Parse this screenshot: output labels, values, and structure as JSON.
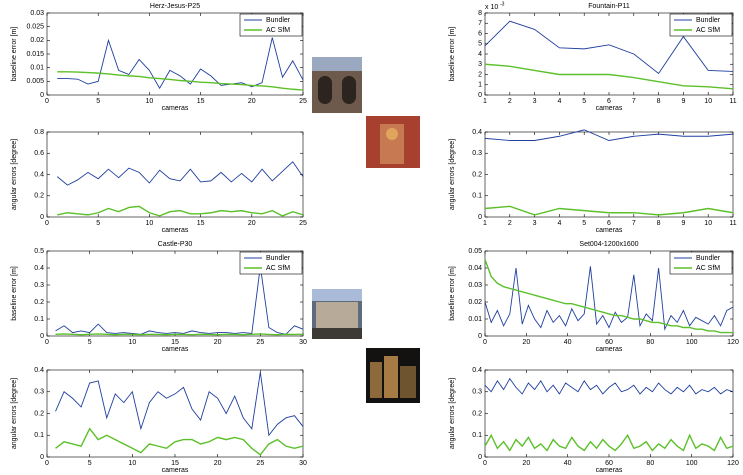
{
  "chart_data": [
    {
      "type": "line",
      "title": "Herz-Jesus-P25",
      "ylabel": "baseline error [m]",
      "xlabel": "cameras",
      "x": [
        1,
        2,
        3,
        4,
        5,
        6,
        7,
        8,
        9,
        10,
        11,
        12,
        13,
        14,
        15,
        16,
        17,
        18,
        19,
        20,
        21,
        22,
        23,
        24,
        25
      ],
      "series": [
        {
          "name": "Bundler",
          "color": "#1f3f9f",
          "values": [
            0.006,
            0.006,
            0.0058,
            0.004,
            0.005,
            0.02,
            0.009,
            0.0075,
            0.013,
            0.009,
            0.0025,
            0.009,
            0.007,
            0.004,
            0.0095,
            0.007,
            0.0035,
            0.004,
            0.0045,
            0.003,
            0.0045,
            0.021,
            0.0065,
            0.0125,
            0.0055
          ]
        },
        {
          "name": "AC SfM",
          "color": "#5cc02a",
          "values": [
            0.0085,
            0.0085,
            0.0084,
            0.0082,
            0.008,
            0.0077,
            0.0073,
            0.007,
            0.0068,
            0.0063,
            0.006,
            0.0057,
            0.0053,
            0.005,
            0.0047,
            0.0045,
            0.0042,
            0.004,
            0.0038,
            0.0035,
            0.0033,
            0.003,
            0.0025,
            0.0021,
            0.0018
          ]
        }
      ],
      "xlim": [
        0,
        25
      ],
      "xticks": [
        0,
        5,
        10,
        15,
        20,
        25
      ],
      "ylim": [
        0,
        0.03
      ],
      "yticks": [
        0,
        0.005,
        0.01,
        0.015,
        0.02,
        0.025,
        0.03
      ],
      "legend": "upper right"
    },
    {
      "type": "line",
      "ylabel": "angular errors [degree]",
      "xlabel": "cameras",
      "x": [
        1,
        2,
        3,
        4,
        5,
        6,
        7,
        8,
        9,
        10,
        11,
        12,
        13,
        14,
        15,
        16,
        17,
        18,
        19,
        20,
        21,
        22,
        23,
        24,
        25
      ],
      "series": [
        {
          "color": "#1f3f9f",
          "values": [
            0.38,
            0.3,
            0.35,
            0.42,
            0.36,
            0.45,
            0.37,
            0.46,
            0.42,
            0.32,
            0.44,
            0.36,
            0.34,
            0.45,
            0.33,
            0.34,
            0.42,
            0.33,
            0.41,
            0.33,
            0.45,
            0.34,
            0.43,
            0.52,
            0.38
          ]
        },
        {
          "color": "#5cc02a",
          "values": [
            0.02,
            0.04,
            0.03,
            0.02,
            0.04,
            0.08,
            0.05,
            0.09,
            0.1,
            0.04,
            0.01,
            0.05,
            0.06,
            0.03,
            0.03,
            0.04,
            0.06,
            0.05,
            0.06,
            0.04,
            0.03,
            0.06,
            0.01,
            0.05,
            0.02
          ]
        }
      ],
      "xlim": [
        0,
        25
      ],
      "xticks": [
        0,
        5,
        10,
        15,
        20,
        25
      ],
      "ylim": [
        0,
        0.8
      ],
      "yticks": [
        0,
        0.2,
        0.4,
        0.6,
        0.8
      ]
    },
    {
      "type": "line",
      "title": "Castle-P30",
      "ylabel": "baseline error [m]",
      "xlabel": "cameras",
      "x": [
        1,
        2,
        3,
        4,
        5,
        6,
        7,
        8,
        9,
        10,
        11,
        12,
        13,
        14,
        15,
        16,
        17,
        18,
        19,
        20,
        21,
        22,
        23,
        24,
        25,
        26,
        27,
        28,
        29,
        30
      ],
      "series": [
        {
          "name": "Bundler",
          "color": "#1f3f9f",
          "values": [
            0.03,
            0.06,
            0.02,
            0.03,
            0.02,
            0.07,
            0.02,
            0.015,
            0.02,
            0.015,
            0.01,
            0.03,
            0.02,
            0.015,
            0.02,
            0.015,
            0.03,
            0.02,
            0.015,
            0.02,
            0.02,
            0.015,
            0.02,
            0.015,
            0.41,
            0.05,
            0.02,
            0.01,
            0.06,
            0.04
          ]
        },
        {
          "name": "AC SfM",
          "color": "#5cc02a",
          "values": [
            0.01,
            0.012,
            0.01,
            0.008,
            0.01,
            0.012,
            0.01,
            0.008,
            0.01,
            0.009,
            0.008,
            0.01,
            0.009,
            0.008,
            0.01,
            0.009,
            0.008,
            0.01,
            0.009,
            0.008,
            0.01,
            0.009,
            0.008,
            0.01,
            0.012,
            0.009,
            0.008,
            0.01,
            0.009,
            0.01
          ]
        }
      ],
      "xlim": [
        0,
        30
      ],
      "xticks": [
        0,
        5,
        10,
        15,
        20,
        25,
        30
      ],
      "ylim": [
        0,
        0.5
      ],
      "yticks": [
        0,
        0.1,
        0.2,
        0.3,
        0.4,
        0.5
      ],
      "legend": "upper right"
    },
    {
      "type": "line",
      "ylabel": "angular errors [degree]",
      "xlabel": "cameras",
      "x": [
        1,
        2,
        3,
        4,
        5,
        6,
        7,
        8,
        9,
        10,
        11,
        12,
        13,
        14,
        15,
        16,
        17,
        18,
        19,
        20,
        21,
        22,
        23,
        24,
        25,
        26,
        27,
        28,
        29,
        30
      ],
      "series": [
        {
          "color": "#1f3f9f",
          "values": [
            0.21,
            0.3,
            0.27,
            0.23,
            0.34,
            0.35,
            0.18,
            0.29,
            0.25,
            0.3,
            0.13,
            0.25,
            0.3,
            0.27,
            0.29,
            0.32,
            0.22,
            0.17,
            0.3,
            0.27,
            0.2,
            0.28,
            0.18,
            0.13,
            0.39,
            0.1,
            0.15,
            0.18,
            0.19,
            0.14
          ]
        },
        {
          "color": "#5cc02a",
          "values": [
            0.04,
            0.07,
            0.06,
            0.05,
            0.13,
            0.08,
            0.1,
            0.08,
            0.06,
            0.04,
            0.02,
            0.06,
            0.05,
            0.04,
            0.07,
            0.08,
            0.08,
            0.06,
            0.07,
            0.09,
            0.08,
            0.09,
            0.08,
            0.04,
            0.01,
            0.06,
            0.08,
            0.05,
            0.04,
            0.05
          ]
        }
      ],
      "xlim": [
        0,
        30
      ],
      "xticks": [
        0,
        5,
        10,
        15,
        20,
        25,
        30
      ],
      "ylim": [
        0,
        0.4
      ],
      "yticks": [
        0,
        0.1,
        0.2,
        0.3,
        0.4
      ]
    },
    {
      "type": "line",
      "title": "Fountain-P11",
      "ylabel": "baseline error [m]",
      "xlabel": "cameras",
      "y_multiplier": "x 10",
      "y_multiplier_exponent": "-3",
      "x": [
        1,
        2,
        3,
        4,
        5,
        6,
        7,
        8,
        9,
        10,
        11
      ],
      "series": [
        {
          "name": "Bundler",
          "color": "#1f3f9f",
          "values": [
            0.0048,
            0.0072,
            0.0064,
            0.0046,
            0.0045,
            0.0049,
            0.004,
            0.0021,
            0.0057,
            0.0024,
            0.0023
          ]
        },
        {
          "name": "AC SfM",
          "color": "#5cc02a",
          "values": [
            0.003,
            0.0028,
            0.0024,
            0.002,
            0.002,
            0.002,
            0.0017,
            0.0013,
            0.0009,
            0.0008,
            0.0006
          ]
        }
      ],
      "xlim": [
        1,
        11
      ],
      "xticks": [
        1,
        2,
        3,
        4,
        5,
        6,
        7,
        8,
        9,
        10,
        11
      ],
      "ylim": [
        0,
        0.008
      ],
      "yticks": [
        {
          "value": 0,
          "label": "0"
        },
        {
          "value": 0.001,
          "label": "1"
        },
        {
          "value": 0.002,
          "label": "2"
        },
        {
          "value": 0.003,
          "label": "3"
        },
        {
          "value": 0.004,
          "label": "4"
        },
        {
          "value": 0.005,
          "label": "5"
        },
        {
          "value": 0.006,
          "label": "6"
        },
        {
          "value": 0.007,
          "label": "7"
        },
        {
          "value": 0.008,
          "label": "8"
        }
      ],
      "legend": "upper right"
    },
    {
      "type": "line",
      "ylabel": "angular errors [degree]",
      "xlabel": "cameras",
      "x": [
        1,
        2,
        3,
        4,
        5,
        6,
        7,
        8,
        9,
        10,
        11
      ],
      "series": [
        {
          "color": "#1f3f9f",
          "values": [
            0.37,
            0.36,
            0.36,
            0.38,
            0.41,
            0.36,
            0.38,
            0.39,
            0.38,
            0.38,
            0.39
          ]
        },
        {
          "color": "#5cc02a",
          "values": [
            0.04,
            0.05,
            0.01,
            0.04,
            0.03,
            0.02,
            0.02,
            0.01,
            0.02,
            0.04,
            0.02
          ]
        }
      ],
      "xlim": [
        1,
        11
      ],
      "xticks": [
        1,
        2,
        3,
        4,
        5,
        6,
        7,
        8,
        9,
        10,
        11
      ],
      "ylim": [
        0,
        0.4
      ],
      "yticks": [
        0,
        0.1,
        0.2,
        0.3,
        0.4
      ]
    },
    {
      "type": "line",
      "title": "Set004-1200x1600",
      "ylabel": "baseline error [m]",
      "xlabel": "cameras",
      "x": [
        0,
        3,
        6,
        9,
        12,
        15,
        18,
        21,
        24,
        27,
        30,
        33,
        36,
        39,
        42,
        45,
        48,
        51,
        54,
        57,
        60,
        63,
        66,
        69,
        72,
        75,
        78,
        81,
        84,
        87,
        90,
        93,
        96,
        99,
        102,
        105,
        108,
        111,
        114,
        117,
        120
      ],
      "series": [
        {
          "name": "Bundler",
          "color": "#1f3f9f",
          "values": [
            0.02,
            0.008,
            0.015,
            0.006,
            0.013,
            0.04,
            0.007,
            0.018,
            0.01,
            0.005,
            0.015,
            0.008,
            0.012,
            0.006,
            0.016,
            0.009,
            0.013,
            0.041,
            0.007,
            0.012,
            0.005,
            0.014,
            0.008,
            0.011,
            0.036,
            0.006,
            0.013,
            0.009,
            0.04,
            0.004,
            0.012,
            0.008,
            0.015,
            0.006,
            0.011,
            0.009,
            0.007,
            0.012,
            0.006,
            0.015,
            0.017
          ]
        },
        {
          "name": "AC SfM",
          "color": "#5cc02a",
          "values": [
            0.045,
            0.035,
            0.031,
            0.029,
            0.028,
            0.027,
            0.026,
            0.025,
            0.024,
            0.023,
            0.022,
            0.021,
            0.02,
            0.019,
            0.019,
            0.018,
            0.017,
            0.016,
            0.015,
            0.014,
            0.013,
            0.012,
            0.012,
            0.011,
            0.01,
            0.01,
            0.009,
            0.008,
            0.008,
            0.007,
            0.006,
            0.006,
            0.005,
            0.005,
            0.004,
            0.004,
            0.003,
            0.003,
            0.002,
            0.002,
            0.002
          ]
        }
      ],
      "xlim": [
        0,
        120
      ],
      "xticks": [
        0,
        20,
        40,
        60,
        80,
        100,
        120
      ],
      "ylim": [
        0,
        0.05
      ],
      "yticks": [
        0,
        0.01,
        0.02,
        0.03,
        0.04,
        0.05
      ],
      "legend": "upper right"
    },
    {
      "type": "line",
      "ylabel": "angular errors [degree]",
      "xlabel": "cameras",
      "x": [
        0,
        3,
        6,
        9,
        12,
        15,
        18,
        21,
        24,
        27,
        30,
        33,
        36,
        39,
        42,
        45,
        48,
        51,
        54,
        57,
        60,
        63,
        66,
        69,
        72,
        75,
        78,
        81,
        84,
        87,
        90,
        93,
        96,
        99,
        102,
        105,
        108,
        111,
        114,
        117,
        120
      ],
      "series": [
        {
          "color": "#1f3f9f",
          "values": [
            0.33,
            0.3,
            0.35,
            0.31,
            0.36,
            0.32,
            0.29,
            0.34,
            0.31,
            0.35,
            0.3,
            0.33,
            0.29,
            0.34,
            0.32,
            0.3,
            0.35,
            0.31,
            0.33,
            0.29,
            0.32,
            0.34,
            0.3,
            0.31,
            0.33,
            0.29,
            0.32,
            0.3,
            0.34,
            0.31,
            0.29,
            0.32,
            0.3,
            0.33,
            0.29,
            0.31,
            0.3,
            0.32,
            0.29,
            0.31,
            0.3
          ]
        },
        {
          "color": "#5cc02a",
          "values": [
            0.05,
            0.1,
            0.04,
            0.07,
            0.03,
            0.08,
            0.05,
            0.09,
            0.04,
            0.06,
            0.03,
            0.08,
            0.05,
            0.04,
            0.09,
            0.05,
            0.03,
            0.07,
            0.04,
            0.08,
            0.05,
            0.03,
            0.06,
            0.1,
            0.04,
            0.05,
            0.07,
            0.03,
            0.06,
            0.04,
            0.08,
            0.05,
            0.03,
            0.1,
            0.04,
            0.06,
            0.05,
            0.03,
            0.09,
            0.04,
            0.05
          ]
        }
      ],
      "xlim": [
        0,
        120
      ],
      "xticks": [
        0,
        20,
        40,
        60,
        80,
        100,
        120
      ],
      "ylim": [
        0,
        0.4
      ],
      "yticks": [
        0,
        0.1,
        0.2,
        0.3,
        0.4
      ]
    }
  ]
}
